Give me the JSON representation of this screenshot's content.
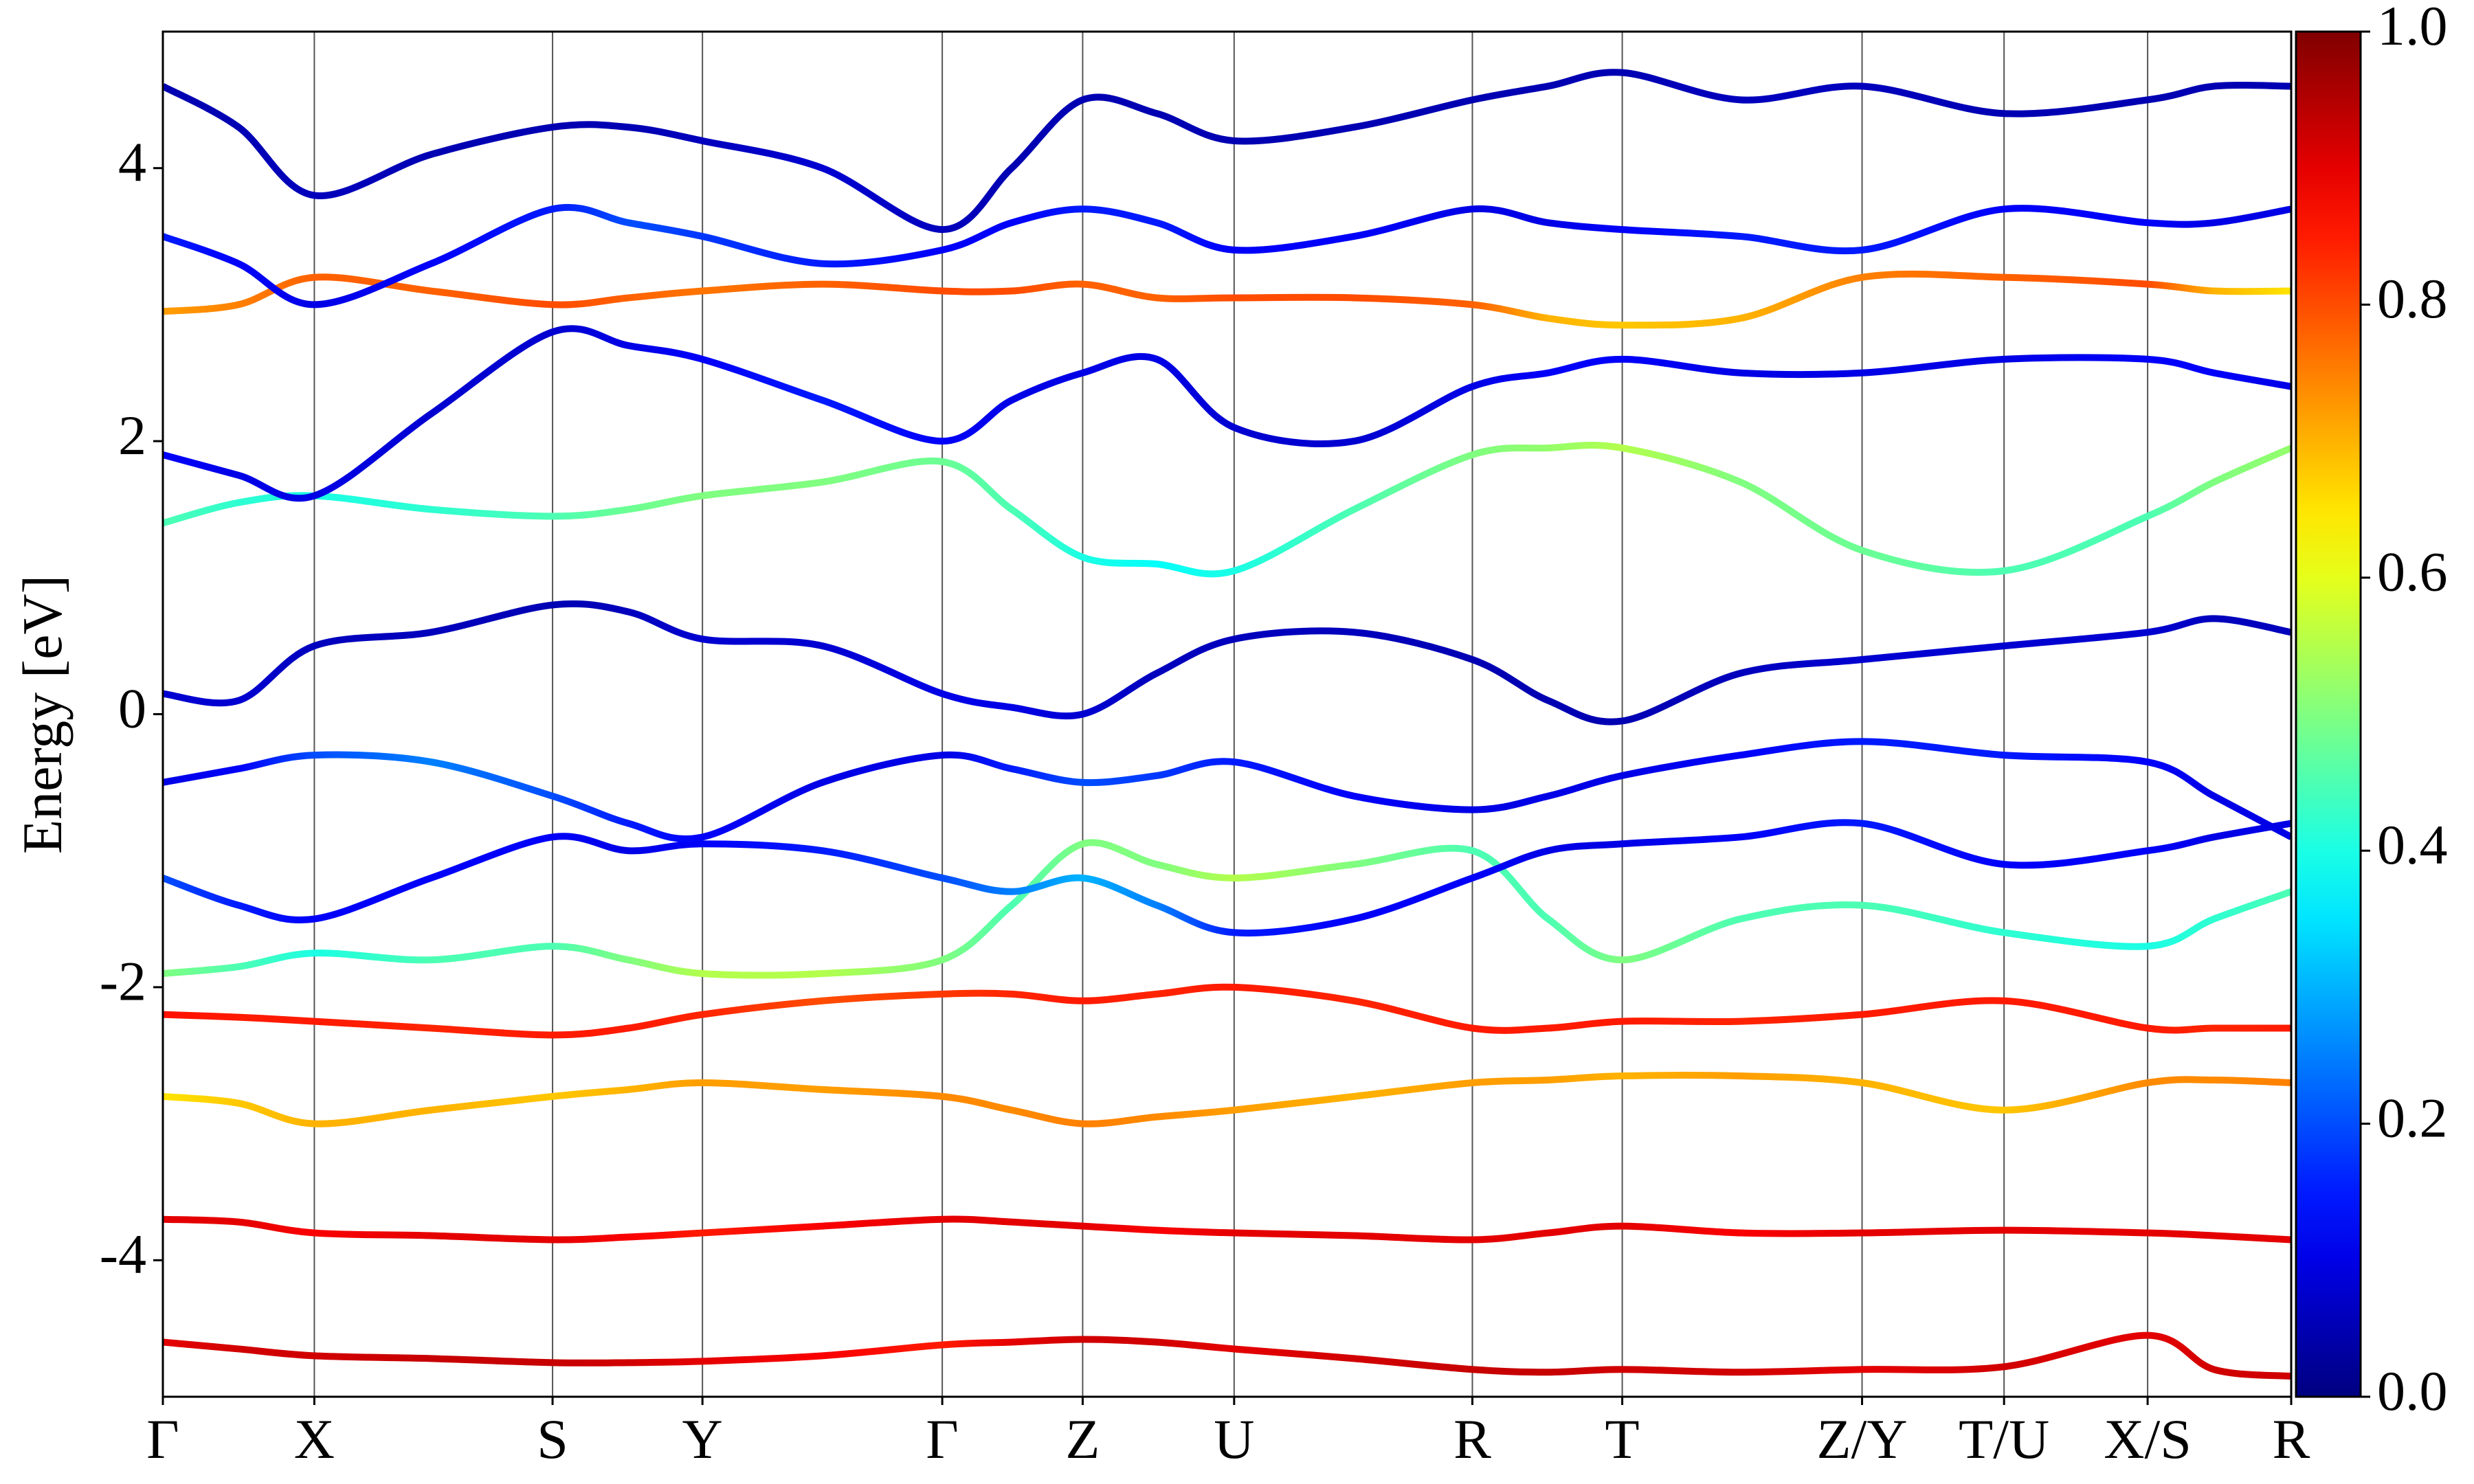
{
  "chart_data": {
    "type": "line",
    "ylabel": "Energy [eV]",
    "x": [
      0,
      0.48,
      0.96,
      1.7,
      2.47,
      2.95,
      3.42,
      4.18,
      4.94,
      5.38,
      5.83,
      6.3,
      6.79,
      7.55,
      8.3,
      8.78,
      9.25,
      10.0,
      10.77,
      11.67,
      12.58,
      13.0,
      13.49
    ],
    "xlim": [
      0,
      13.49
    ],
    "xticks": [
      {
        "value": 0,
        "label": "Γ"
      },
      {
        "value": 0.96,
        "label": "X"
      },
      {
        "value": 2.47,
        "label": "S"
      },
      {
        "value": 3.42,
        "label": "Y"
      },
      {
        "value": 4.94,
        "label": "Γ"
      },
      {
        "value": 5.83,
        "label": "Z"
      },
      {
        "value": 6.79,
        "label": "U"
      },
      {
        "value": 8.3,
        "label": "R"
      },
      {
        "value": 9.25,
        "label": "T"
      },
      {
        "value": 10.77,
        "label": "Z/Y"
      },
      {
        "value": 11.67,
        "label": "T/U"
      },
      {
        "value": 12.58,
        "label": "X/S"
      },
      {
        "value": 13.49,
        "label": "R"
      }
    ],
    "ylim": [
      -5,
      5
    ],
    "yticks": [
      -4,
      -2,
      0,
      2,
      4
    ],
    "colormap": "jet",
    "clim": [
      0,
      1
    ],
    "cticks": [
      {
        "value": 0,
        "label": "0.0"
      },
      0.2,
      0.4,
      0.6,
      0.8,
      {
        "value": 1,
        "label": "1.0"
      }
    ],
    "series": [
      {
        "values": [
          -4.6,
          -4.65,
          -4.7,
          -4.72,
          -4.75,
          -4.75,
          -4.74,
          -4.7,
          -4.62,
          -4.6,
          -4.58,
          -4.6,
          -4.65,
          -4.72,
          -4.8,
          -4.82,
          -4.8,
          -4.82,
          -4.8,
          -4.78,
          -4.55,
          -4.8,
          -4.85
        ],
        "weights": [
          0.9,
          0.92,
          0.92,
          0.93,
          0.93,
          0.92,
          0.9,
          0.88,
          0.85,
          0.9,
          0.92,
          0.92,
          0.9,
          0.92,
          0.93,
          0.93,
          0.92,
          0.92,
          0.9,
          0.92,
          0.9,
          0.92,
          0.92
        ]
      },
      {
        "values": [
          -3.7,
          -3.72,
          -3.8,
          -3.82,
          -3.85,
          -3.83,
          -3.8,
          -3.75,
          -3.7,
          -3.72,
          -3.75,
          -3.78,
          -3.8,
          -3.82,
          -3.85,
          -3.8,
          -3.75,
          -3.8,
          -3.8,
          -3.78,
          -3.8,
          -3.82,
          -3.85
        ],
        "weights": [
          0.9,
          0.9,
          0.88,
          0.9,
          0.9,
          0.88,
          0.85,
          0.88,
          0.9,
          0.9,
          0.9,
          0.88,
          0.9,
          0.9,
          0.9,
          0.9,
          0.9,
          0.88,
          0.9,
          0.9,
          0.9,
          0.9,
          0.9
        ]
      },
      {
        "values": [
          -2.2,
          -2.22,
          -2.25,
          -2.3,
          -2.35,
          -2.3,
          -2.2,
          -2.1,
          -2.05,
          -2.05,
          -2.1,
          -2.05,
          -2.0,
          -2.1,
          -2.3,
          -2.3,
          -2.25,
          -2.25,
          -2.2,
          -2.1,
          -2.3,
          -2.3,
          -2.3
        ],
        "weights": [
          0.86,
          0.85,
          0.85,
          0.84,
          0.85,
          0.85,
          0.84,
          0.8,
          0.82,
          0.84,
          0.85,
          0.84,
          0.85,
          0.84,
          0.85,
          0.85,
          0.85,
          0.84,
          0.85,
          0.85,
          0.85,
          0.84,
          0.85
        ]
      },
      {
        "values": [
          -2.8,
          -2.85,
          -3.0,
          -2.9,
          -2.8,
          -2.75,
          -2.7,
          -2.75,
          -2.8,
          -2.9,
          -3.0,
          -2.95,
          -2.9,
          -2.8,
          -2.7,
          -2.68,
          -2.65,
          -2.65,
          -2.7,
          -2.9,
          -2.7,
          -2.68,
          -2.7
        ],
        "weights": [
          0.65,
          0.68,
          0.7,
          0.7,
          0.68,
          0.7,
          0.72,
          0.72,
          0.74,
          0.74,
          0.75,
          0.74,
          0.72,
          0.7,
          0.72,
          0.72,
          0.7,
          0.72,
          0.7,
          0.68,
          0.74,
          0.74,
          0.75
        ]
      },
      {
        "values": [
          -1.9,
          -1.85,
          -1.75,
          -1.8,
          -1.7,
          -1.8,
          -1.9,
          -1.9,
          -1.8,
          -1.4,
          -0.95,
          -1.1,
          -1.2,
          -1.1,
          -1.0,
          -1.5,
          -1.8,
          -1.5,
          -1.4,
          -1.6,
          -1.7,
          -1.5,
          -1.3
        ],
        "weights": [
          0.5,
          0.45,
          0.4,
          0.45,
          0.45,
          0.5,
          0.55,
          0.55,
          0.5,
          0.45,
          0.5,
          0.5,
          0.55,
          0.5,
          0.45,
          0.45,
          0.5,
          0.45,
          0.45,
          0.42,
          0.4,
          0.42,
          0.45
        ]
      },
      {
        "values": [
          -1.2,
          -1.4,
          -1.5,
          -1.2,
          -0.9,
          -1.0,
          -0.95,
          -1.0,
          -1.2,
          -1.3,
          -1.2,
          -1.4,
          -1.6,
          -1.5,
          -1.2,
          -1.0,
          -0.95,
          -0.9,
          -0.8,
          -1.1,
          -1.0,
          -0.9,
          -0.8
        ],
        "weights": [
          0.2,
          0.15,
          0.12,
          0.12,
          0.12,
          0.1,
          0.12,
          0.15,
          0.2,
          0.25,
          0.3,
          0.25,
          0.15,
          0.12,
          0.12,
          0.1,
          0.1,
          0.12,
          0.15,
          0.12,
          0.12,
          0.1,
          0.1
        ]
      },
      {
        "values": [
          -0.5,
          -0.4,
          -0.3,
          -0.35,
          -0.6,
          -0.8,
          -0.9,
          -0.5,
          -0.3,
          -0.4,
          -0.5,
          -0.45,
          -0.35,
          -0.6,
          -0.7,
          -0.6,
          -0.45,
          -0.3,
          -0.2,
          -0.3,
          -0.35,
          -0.6,
          -0.9
        ],
        "weights": [
          0.1,
          0.12,
          0.2,
          0.25,
          0.2,
          0.15,
          0.12,
          0.1,
          0.1,
          0.15,
          0.2,
          0.18,
          0.15,
          0.12,
          0.1,
          0.1,
          0.1,
          0.12,
          0.15,
          0.15,
          0.12,
          0.1,
          0.1
        ]
      },
      {
        "values": [
          0.15,
          0.1,
          0.5,
          0.6,
          0.8,
          0.75,
          0.55,
          0.5,
          0.15,
          0.05,
          0.0,
          0.3,
          0.55,
          0.6,
          0.4,
          0.1,
          -0.05,
          0.3,
          0.4,
          0.5,
          0.6,
          0.7,
          0.6
        ],
        "weights": [
          0.08,
          0.08,
          0.06,
          0.06,
          0.05,
          0.06,
          0.08,
          0.08,
          0.1,
          0.1,
          0.08,
          0.06,
          0.06,
          0.06,
          0.05,
          0.05,
          0.05,
          0.06,
          0.08,
          0.08,
          0.08,
          0.06,
          0.06
        ]
      },
      {
        "values": [
          1.4,
          1.55,
          1.6,
          1.5,
          1.45,
          1.5,
          1.6,
          1.7,
          1.85,
          1.5,
          1.15,
          1.1,
          1.05,
          1.5,
          1.9,
          1.95,
          1.95,
          1.7,
          1.2,
          1.05,
          1.45,
          1.7,
          1.95
        ],
        "weights": [
          0.45,
          0.42,
          0.4,
          0.42,
          0.45,
          0.48,
          0.5,
          0.5,
          0.48,
          0.45,
          0.4,
          0.38,
          0.4,
          0.45,
          0.5,
          0.52,
          0.55,
          0.5,
          0.48,
          0.45,
          0.45,
          0.5,
          0.52
        ]
      },
      {
        "values": [
          1.9,
          1.75,
          1.6,
          2.2,
          2.8,
          2.7,
          2.6,
          2.3,
          2.0,
          2.3,
          2.5,
          2.6,
          2.1,
          2.0,
          2.4,
          2.5,
          2.6,
          2.5,
          2.5,
          2.6,
          2.6,
          2.5,
          2.4
        ],
        "weights": [
          0.12,
          0.1,
          0.1,
          0.08,
          0.08,
          0.1,
          0.12,
          0.15,
          0.12,
          0.1,
          0.1,
          0.1,
          0.08,
          0.08,
          0.1,
          0.12,
          0.12,
          0.1,
          0.1,
          0.1,
          0.12,
          0.12,
          0.1
        ]
      },
      {
        "values": [
          2.95,
          3.0,
          3.2,
          3.1,
          3.0,
          3.05,
          3.1,
          3.15,
          3.1,
          3.1,
          3.15,
          3.05,
          3.05,
          3.05,
          3.0,
          2.9,
          2.85,
          2.9,
          3.2,
          3.2,
          3.15,
          3.1,
          3.1
        ],
        "weights": [
          0.72,
          0.75,
          0.78,
          0.78,
          0.8,
          0.78,
          0.76,
          0.78,
          0.8,
          0.8,
          0.78,
          0.78,
          0.8,
          0.8,
          0.78,
          0.7,
          0.68,
          0.7,
          0.75,
          0.78,
          0.8,
          0.7,
          0.65
        ]
      },
      {
        "values": [
          3.5,
          3.3,
          3.0,
          3.3,
          3.7,
          3.6,
          3.5,
          3.3,
          3.4,
          3.6,
          3.7,
          3.6,
          3.4,
          3.5,
          3.7,
          3.6,
          3.55,
          3.5,
          3.4,
          3.7,
          3.6,
          3.6,
          3.7
        ],
        "weights": [
          0.15,
          0.12,
          0.1,
          0.12,
          0.15,
          0.2,
          0.18,
          0.15,
          0.12,
          0.12,
          0.15,
          0.15,
          0.12,
          0.12,
          0.1,
          0.1,
          0.12,
          0.15,
          0.15,
          0.12,
          0.12,
          0.1,
          0.1
        ]
      },
      {
        "values": [
          4.6,
          4.3,
          3.8,
          4.1,
          4.3,
          4.3,
          4.2,
          4.0,
          3.55,
          4.0,
          4.5,
          4.4,
          4.2,
          4.3,
          4.5,
          4.6,
          4.7,
          4.5,
          4.6,
          4.4,
          4.5,
          4.6,
          4.6
        ],
        "weights": [
          0.05,
          0.05,
          0.06,
          0.05,
          0.05,
          0.05,
          0.06,
          0.08,
          0.06,
          0.05,
          0.05,
          0.05,
          0.05,
          0.05,
          0.05,
          0.05,
          0.05,
          0.06,
          0.06,
          0.05,
          0.05,
          0.05,
          0.05
        ]
      }
    ]
  }
}
